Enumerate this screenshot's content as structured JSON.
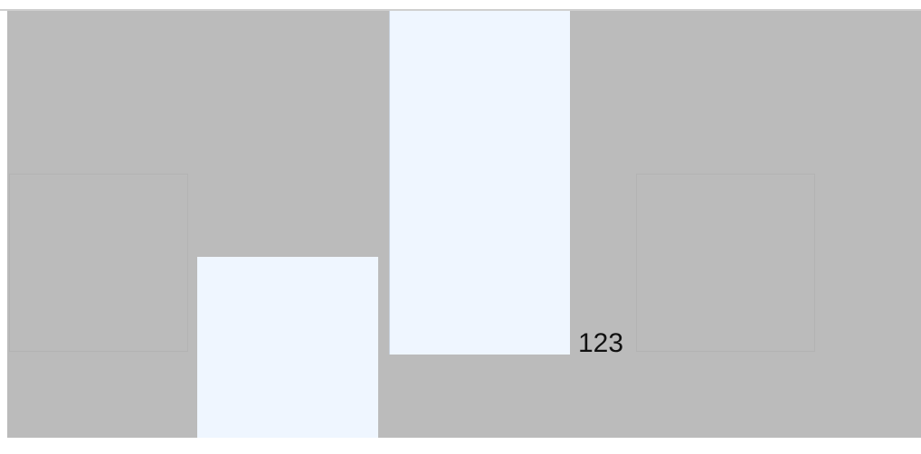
{
  "stage": {
    "background": "#bbbbbb",
    "panel_color": "#eff6ff",
    "label": "123"
  }
}
